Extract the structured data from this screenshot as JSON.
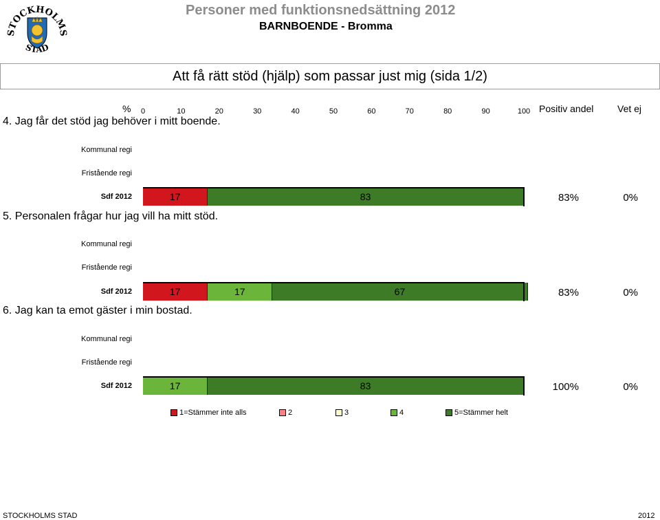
{
  "header": {
    "title": "Personer med funktionsnedsättning 2012",
    "subtitle": "BARNBOENDE - Bromma",
    "logo_text": "STOCKHOLMS STAD"
  },
  "banner": {
    "title": "Att få rätt stöd (hjälp) som passar just mig (sida 1/2)"
  },
  "columns": {
    "percent_label": "%",
    "positive": "Positiv andel",
    "unknown": "Vet ej"
  },
  "row_labels": {
    "kommunal": "Kommunal regi",
    "fristaende": "Fristående regi",
    "sdf": "Sdf 2012"
  },
  "chart_data": {
    "type": "bar",
    "orientation": "horizontal-stacked-100",
    "xlim": [
      0,
      100
    ],
    "xticks": [
      "0",
      "10",
      "20",
      "30",
      "40",
      "50",
      "60",
      "70",
      "80",
      "90",
      "100"
    ],
    "categories": [
      "1=Stämmer inte alls",
      "2",
      "3",
      "4",
      "5=Stämmer helt"
    ],
    "colors": [
      "#d2161e",
      "#ff8080",
      "#ffffcc",
      "#6ab53a",
      "#3e7b26"
    ],
    "questions": [
      {
        "text": "4. Jag får det stöd jag behöver i mitt boende.",
        "segments": [
          {
            "category": 0,
            "value": 17,
            "label": "17"
          },
          {
            "category": 4,
            "value": 83,
            "label": "83"
          }
        ],
        "positive": "83%",
        "unknown": "0%"
      },
      {
        "text": "5. Personalen frågar hur jag vill ha mitt stöd.",
        "segments": [
          {
            "category": 0,
            "value": 17,
            "label": "17"
          },
          {
            "category": 3,
            "value": 17,
            "label": "17"
          },
          {
            "category": 4,
            "value": 67,
            "label": "67"
          }
        ],
        "positive": "83%",
        "unknown": "0%"
      },
      {
        "text": "6. Jag kan ta emot gäster i min bostad.",
        "segments": [
          {
            "category": 3,
            "value": 17,
            "label": "17"
          },
          {
            "category": 4,
            "value": 83,
            "label": "83"
          }
        ],
        "positive": "100%",
        "unknown": "0%"
      }
    ]
  },
  "footer": {
    "left": "STOCKHOLMS STAD",
    "right": "2012"
  }
}
